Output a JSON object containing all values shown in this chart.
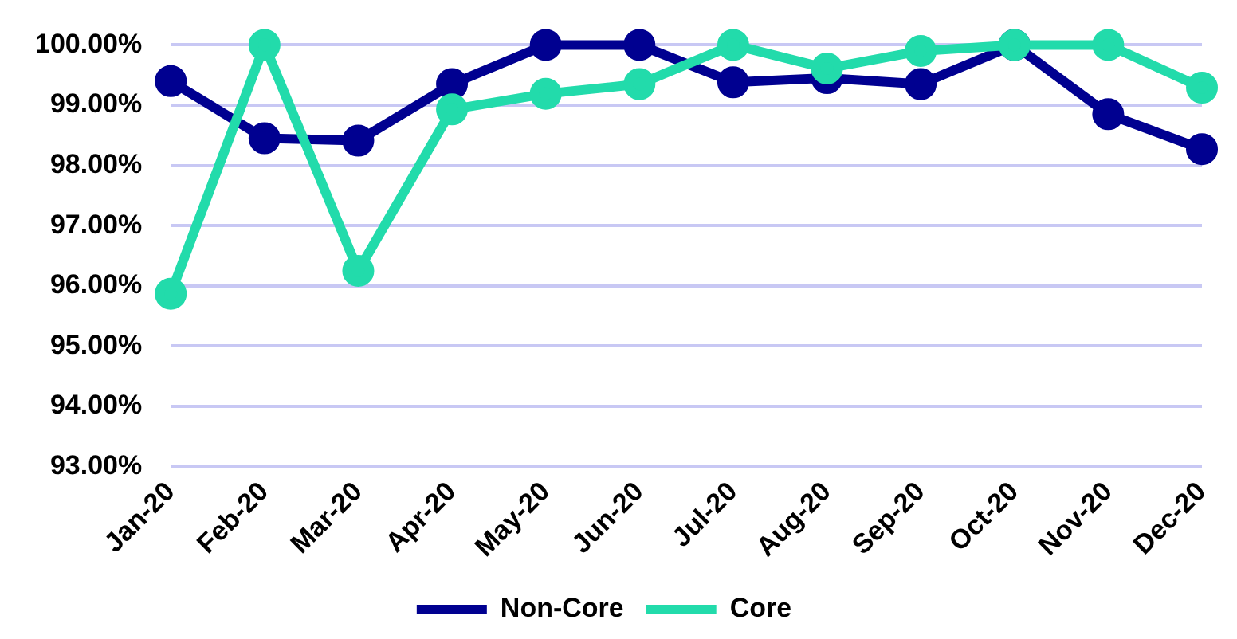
{
  "chart_data": {
    "type": "line",
    "categories": [
      "Jan-20",
      "Feb-20",
      "Mar-20",
      "Apr-20",
      "May-20",
      "Jun-20",
      "Jul-20",
      "Aug-20",
      "Sep-20",
      "Oct-20",
      "Nov-20",
      "Dec-20"
    ],
    "series": [
      {
        "name": "Non-Core",
        "color": "#000090",
        "values": [
          99.4,
          98.45,
          98.41,
          99.35,
          100,
          100,
          99.38,
          99.45,
          99.35,
          100,
          98.85,
          98.27
        ]
      },
      {
        "name": "Core",
        "color": "#22dbab",
        "values": [
          95.87,
          100,
          96.25,
          98.93,
          99.19,
          99.35,
          100,
          99.61,
          99.9,
          100,
          100,
          99.29
        ]
      }
    ],
    "ylim": [
      93,
      100
    ],
    "yticks": [
      {
        "value": 93,
        "label": "93.00%"
      },
      {
        "value": 94,
        "label": "94.00%"
      },
      {
        "value": 95,
        "label": "95.00%"
      },
      {
        "value": 96,
        "label": "96.00%"
      },
      {
        "value": 97,
        "label": "97.00%"
      },
      {
        "value": 98,
        "label": "98.00%"
      },
      {
        "value": 99,
        "label": "99.00%"
      },
      {
        "value": 100,
        "label": "100.00%"
      }
    ],
    "grid": "y",
    "legend": "bottom",
    "marker": "circle",
    "line_style": "solid"
  }
}
